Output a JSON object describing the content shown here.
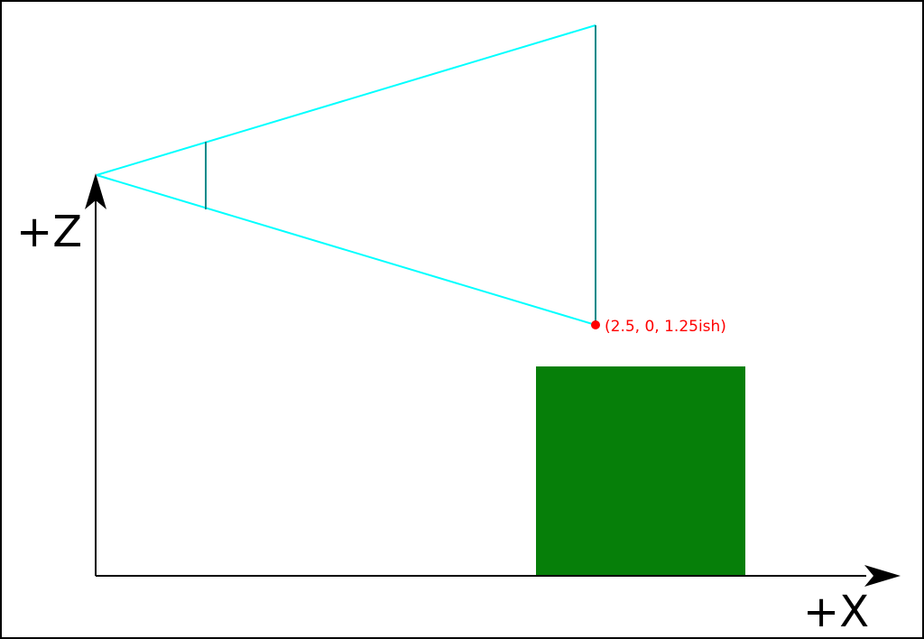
{
  "axes": {
    "x_label": "+X",
    "z_label": "+Z"
  },
  "annotations": {
    "corner_point_label": "(2.5, 0, 1.25ish)"
  },
  "colors": {
    "frustum_edge": "#00ffff",
    "clip_plane": "#008b8b",
    "object": "#067f09",
    "point": "#ff0000",
    "axis": "#000000"
  }
}
